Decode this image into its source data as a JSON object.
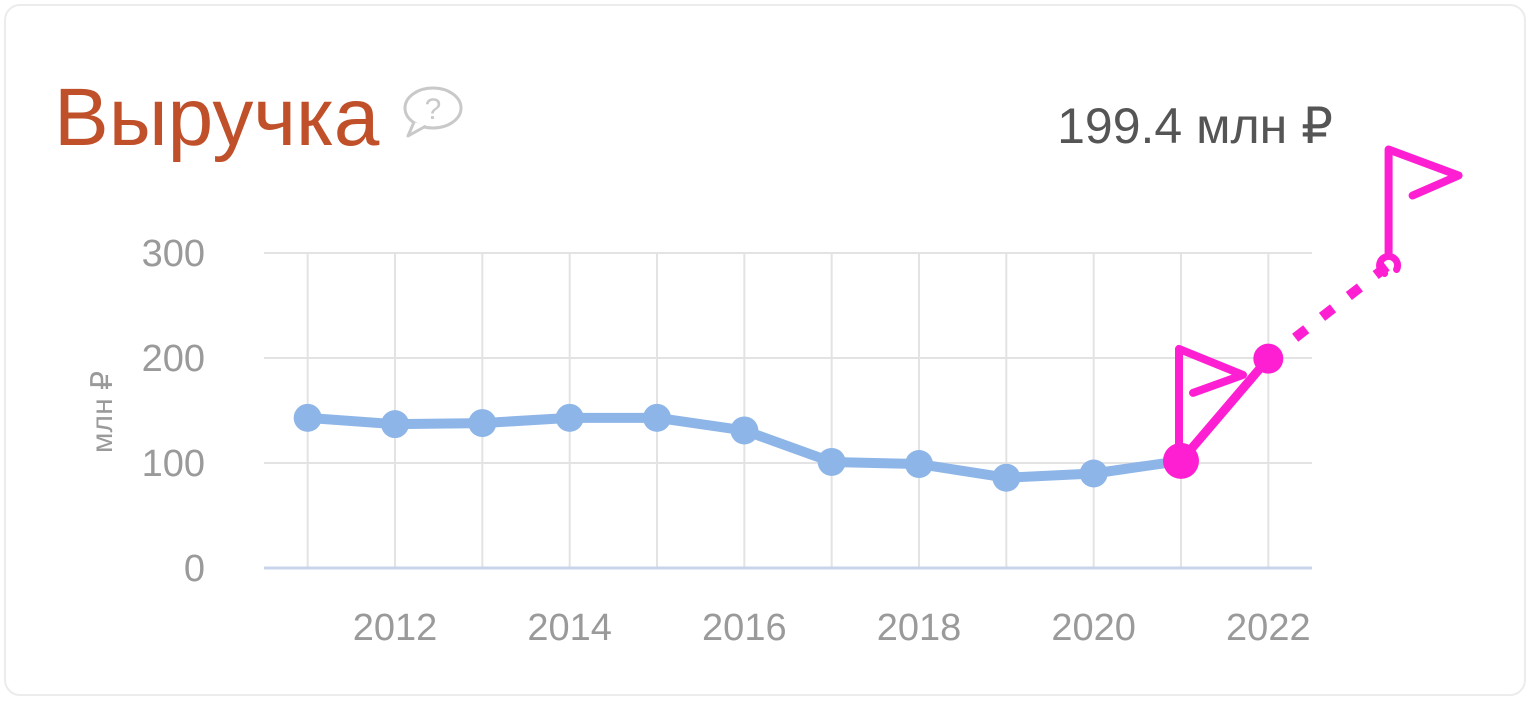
{
  "widget": {
    "title": "Выручка",
    "current_value": "199.4 млн ₽"
  },
  "icons": {
    "help": "question-speech-bubble-icon",
    "forecast_flag": "flag-icon"
  },
  "colors": {
    "title": "#c0502a",
    "line": "#8db5e8",
    "highlight": "#ff1fd2",
    "grid": "#e3e3e3",
    "axis": "#c9d3ec",
    "text": "#9a9a9a"
  },
  "chart_data": {
    "type": "line",
    "ylabel": "млн ₽",
    "ylim": [
      0,
      300
    ],
    "yticks": [
      0,
      100,
      200,
      300
    ],
    "xticks": [
      2012,
      2014,
      2016,
      2018,
      2020,
      2022
    ],
    "grid": true,
    "series": [
      {
        "x": [
          2011,
          2012,
          2013,
          2014,
          2015,
          2016,
          2017,
          2018,
          2019,
          2020,
          2021
        ],
        "values": [
          143,
          137,
          138,
          143,
          143,
          131,
          101,
          99,
          86,
          90,
          102
        ]
      }
    ],
    "highlight": {
      "x": [
        2021,
        2022
      ],
      "values": [
        102,
        199.4
      ]
    },
    "forecast": {
      "x": [
        2022,
        2023.4
      ],
      "values": [
        199.4,
        290
      ]
    }
  }
}
